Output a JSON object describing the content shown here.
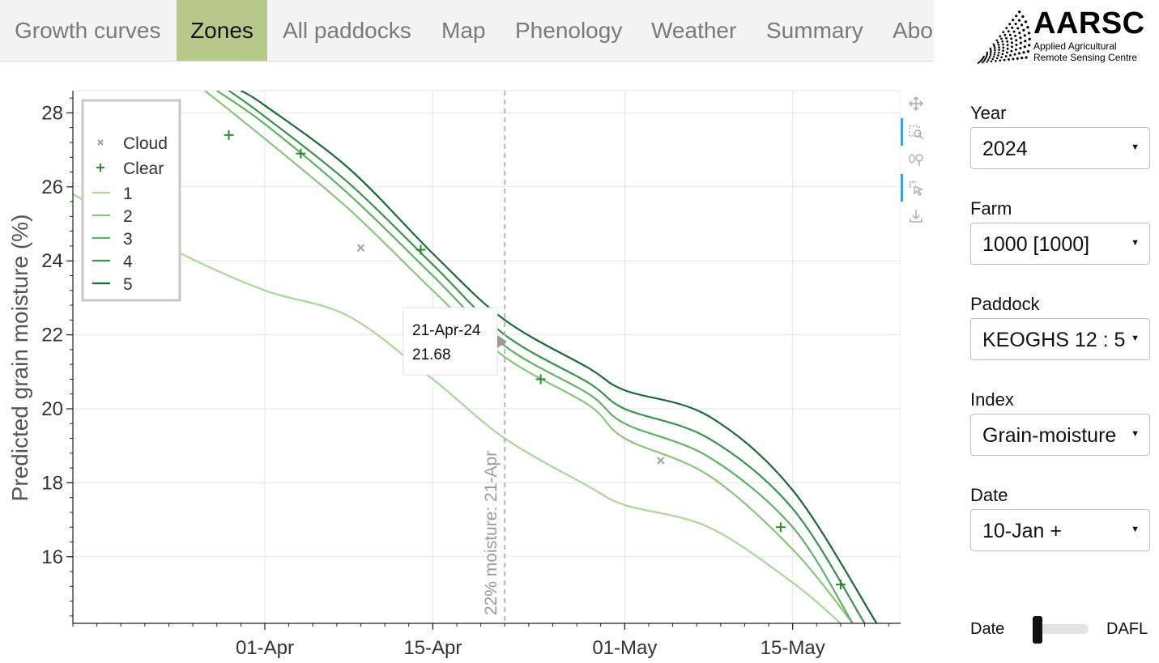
{
  "tabs": [
    {
      "label": "Growth curves",
      "active": false
    },
    {
      "label": "Zones",
      "active": true
    },
    {
      "label": "All paddocks",
      "active": false
    },
    {
      "label": "Map",
      "active": false
    },
    {
      "label": "Phenology",
      "active": false
    },
    {
      "label": "Weather",
      "active": false
    },
    {
      "label": "Summary",
      "active": false
    },
    {
      "label": "Abo",
      "active": false
    }
  ],
  "logo": {
    "title": "AARSC",
    "subtitle_line1": "Applied Agricultural",
    "subtitle_line2": "Remote Sensing Centre"
  },
  "controls": {
    "year": {
      "label": "Year",
      "value": "2024"
    },
    "farm": {
      "label": "Farm",
      "value": "1000 [1000]"
    },
    "paddock": {
      "label": "Paddock",
      "value": "KEOGHS 12 : 5"
    },
    "index": {
      "label": "Index",
      "value": "Grain-moisture"
    },
    "date": {
      "label": "Date",
      "value": "10-Jan +"
    },
    "toggle": {
      "left": "Date",
      "right": "DAFL",
      "selected": "Date"
    }
  },
  "toolbar": [
    "pan-icon",
    "box-zoom-icon",
    "wheel-zoom-icon",
    "hover-icon",
    "save-icon"
  ],
  "chart_data": {
    "type": "line",
    "xlabel": "",
    "ylabel": "Predicted grain moisture (%)",
    "xlim": [
      "2024-03-16",
      "2024-05-24"
    ],
    "ylim": [
      14.2,
      28.6
    ],
    "x_ticks": [
      "01-Apr",
      "15-Apr",
      "01-May",
      "15-May"
    ],
    "x_tick_dates": [
      "2024-04-01",
      "2024-04-15",
      "2024-05-01",
      "2024-05-15"
    ],
    "y_ticks": [
      16,
      18,
      20,
      22,
      24,
      26,
      28
    ],
    "grid": true,
    "legend_position": "top-left",
    "legend": [
      {
        "label": "Cloud",
        "marker": "x",
        "color": "#a0a0a0"
      },
      {
        "label": "Clear",
        "marker": "+",
        "color": "#2e8b2e"
      },
      {
        "label": "1",
        "color": "#a8d898"
      },
      {
        "label": "2",
        "color": "#86c77a"
      },
      {
        "label": "3",
        "color": "#5fb262"
      },
      {
        "label": "4",
        "color": "#37944a"
      },
      {
        "label": "5",
        "color": "#1a6b33"
      }
    ],
    "series": [
      {
        "name": "1",
        "color": "#a8d898",
        "points": [
          [
            "2024-03-16",
            25.8
          ],
          [
            "2024-03-25",
            24.2
          ],
          [
            "2024-04-01",
            23.2
          ],
          [
            "2024-04-08",
            22.5
          ],
          [
            "2024-04-15",
            20.8
          ],
          [
            "2024-04-21",
            19.2
          ],
          [
            "2024-04-28",
            17.9
          ],
          [
            "2024-05-01",
            17.4
          ],
          [
            "2024-05-08",
            16.8
          ],
          [
            "2024-05-15",
            15.3
          ],
          [
            "2024-05-19",
            14.2
          ]
        ]
      },
      {
        "name": "2",
        "color": "#86c77a",
        "points": [
          [
            "2024-03-27",
            28.6
          ],
          [
            "2024-04-01",
            27.3
          ],
          [
            "2024-04-08",
            25.4
          ],
          [
            "2024-04-15",
            23.2
          ],
          [
            "2024-04-21",
            21.4
          ],
          [
            "2024-04-28",
            20.1
          ],
          [
            "2024-05-01",
            19.2
          ],
          [
            "2024-05-08",
            18.2
          ],
          [
            "2024-05-15",
            16.2
          ],
          [
            "2024-05-20",
            14.2
          ]
        ]
      },
      {
        "name": "3",
        "color": "#5fb262",
        "points": [
          [
            "2024-03-28",
            28.6
          ],
          [
            "2024-04-01",
            27.7
          ],
          [
            "2024-04-08",
            25.8
          ],
          [
            "2024-04-15",
            23.6
          ],
          [
            "2024-04-21",
            21.7
          ],
          [
            "2024-04-28",
            20.4
          ],
          [
            "2024-05-01",
            19.6
          ],
          [
            "2024-05-08",
            18.7
          ],
          [
            "2024-05-15",
            16.8
          ],
          [
            "2024-05-20",
            14.2
          ]
        ]
      },
      {
        "name": "4",
        "color": "#37944a",
        "points": [
          [
            "2024-03-29",
            28.6
          ],
          [
            "2024-04-01",
            27.9
          ],
          [
            "2024-04-08",
            26.1
          ],
          [
            "2024-04-15",
            23.9
          ],
          [
            "2024-04-21",
            22.0
          ],
          [
            "2024-04-28",
            20.7
          ],
          [
            "2024-05-01",
            20.0
          ],
          [
            "2024-05-08",
            19.2
          ],
          [
            "2024-05-15",
            17.3
          ],
          [
            "2024-05-21",
            14.2
          ]
        ]
      },
      {
        "name": "5",
        "color": "#1a6b33",
        "points": [
          [
            "2024-03-30",
            28.6
          ],
          [
            "2024-04-01",
            28.2
          ],
          [
            "2024-04-08",
            26.5
          ],
          [
            "2024-04-15",
            24.2
          ],
          [
            "2024-04-21",
            22.4
          ],
          [
            "2024-04-28",
            21.1
          ],
          [
            "2024-05-01",
            20.5
          ],
          [
            "2024-05-08",
            19.8
          ],
          [
            "2024-05-15",
            17.8
          ],
          [
            "2024-05-22",
            14.2
          ]
        ]
      }
    ],
    "cloud_points": [
      [
        "2024-04-09",
        24.35
      ],
      [
        "2024-05-04",
        18.6
      ]
    ],
    "clear_points": [
      [
        "2024-03-29",
        27.4
      ],
      [
        "2024-04-04",
        26.9
      ],
      [
        "2024-04-14",
        24.3
      ],
      [
        "2024-04-24",
        20.8
      ],
      [
        "2024-05-14",
        16.8
      ],
      [
        "2024-05-19",
        15.25
      ]
    ],
    "vline": {
      "date": "2024-04-21",
      "label": "22% moisture: 21-Apr"
    },
    "tooltip": {
      "date": "21-Apr-24",
      "value": "21.68"
    }
  }
}
